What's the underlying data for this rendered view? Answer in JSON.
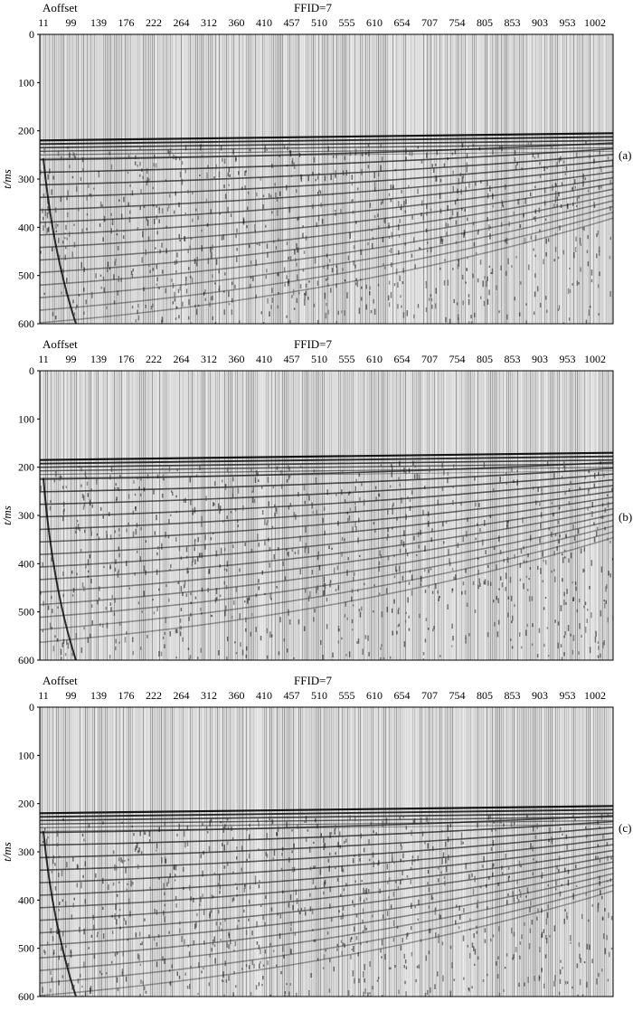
{
  "figure": {
    "panels": [
      {
        "label": "(a)",
        "offset_axis_title": "Aoffset",
        "record_title": "FFID=7",
        "y_axis_label": "t/ms",
        "offset_ticks": [
          "11",
          "99",
          "139",
          "176",
          "222",
          "264",
          "312",
          "360",
          "410",
          "457",
          "510",
          "555",
          "610",
          "654",
          "707",
          "754",
          "805",
          "853",
          "903",
          "953",
          "1002"
        ],
        "time_ticks": [
          "0",
          "100",
          "200",
          "300",
          "400",
          "500",
          "600"
        ]
      },
      {
        "label": "(b)",
        "offset_axis_title": "Aoffset",
        "record_title": "FFID=7",
        "y_axis_label": "t/ms",
        "offset_ticks": [
          "11",
          "99",
          "139",
          "176",
          "222",
          "264",
          "312",
          "360",
          "410",
          "457",
          "510",
          "555",
          "610",
          "654",
          "707",
          "754",
          "805",
          "853",
          "903",
          "953",
          "1002"
        ],
        "time_ticks": [
          "0",
          "100",
          "200",
          "300",
          "400",
          "500",
          "600"
        ]
      },
      {
        "label": "(c)",
        "offset_axis_title": "Aoffset",
        "record_title": "FFID=7",
        "y_axis_label": "t/ms",
        "offset_ticks": [
          "11",
          "99",
          "139",
          "176",
          "222",
          "264",
          "312",
          "360",
          "410",
          "457",
          "510",
          "555",
          "610",
          "654",
          "707",
          "754",
          "805",
          "853",
          "903",
          "953",
          "1002"
        ],
        "time_ticks": [
          "0",
          "100",
          "200",
          "300",
          "400",
          "500",
          "600"
        ]
      }
    ]
  },
  "chart_data": [
    {
      "type": "heatmap",
      "title": "FFID=7",
      "xlabel": "Aoffset",
      "ylabel": "t/ms",
      "panel_label": "(a)",
      "x_tick_labels": [
        11,
        99,
        139,
        176,
        222,
        264,
        312,
        360,
        410,
        457,
        510,
        555,
        610,
        654,
        707,
        754,
        805,
        853,
        903,
        953,
        1002
      ],
      "ylim": [
        0,
        600
      ],
      "y_ticks": [
        0,
        100,
        200,
        300,
        400,
        500,
        600
      ],
      "first_break_ms": {
        "near_offset": 220,
        "far_offset": 205
      },
      "colors": {
        "trace_fill": "#000000",
        "background": "#ffffff"
      }
    },
    {
      "type": "heatmap",
      "title": "FFID=7",
      "xlabel": "Aoffset",
      "ylabel": "t/ms",
      "panel_label": "(b)",
      "x_tick_labels": [
        11,
        99,
        139,
        176,
        222,
        264,
        312,
        360,
        410,
        457,
        510,
        555,
        610,
        654,
        707,
        754,
        805,
        853,
        903,
        953,
        1002
      ],
      "ylim": [
        0,
        600
      ],
      "y_ticks": [
        0,
        100,
        200,
        300,
        400,
        500,
        600
      ],
      "first_break_ms": {
        "near_offset": 185,
        "far_offset": 170
      },
      "colors": {
        "trace_fill": "#000000",
        "background": "#ffffff"
      }
    },
    {
      "type": "heatmap",
      "title": "FFID=7",
      "xlabel": "Aoffset",
      "ylabel": "t/ms",
      "panel_label": "(c)",
      "x_tick_labels": [
        11,
        99,
        139,
        176,
        222,
        264,
        312,
        360,
        410,
        457,
        510,
        555,
        610,
        654,
        707,
        754,
        805,
        853,
        903,
        953,
        1002
      ],
      "ylim": [
        0,
        600
      ],
      "y_ticks": [
        0,
        100,
        200,
        300,
        400,
        500,
        600
      ],
      "first_break_ms": {
        "near_offset": 220,
        "far_offset": 205
      },
      "colors": {
        "trace_fill": "#000000",
        "background": "#ffffff"
      }
    }
  ]
}
